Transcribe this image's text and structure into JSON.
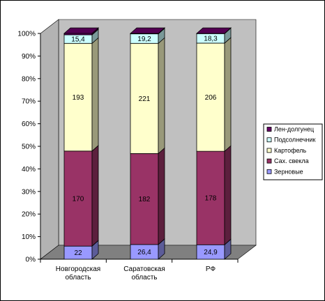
{
  "chart_data": {
    "type": "bar",
    "stacked": true,
    "percent": true,
    "categories": [
      [
        "Новгородская",
        "область"
      ],
      [
        "Саратовская",
        "область"
      ],
      [
        "РФ"
      ]
    ],
    "series": [
      {
        "name": "Зерновые",
        "color": "#9999ff",
        "labels": [
          "22",
          "26,4",
          "24,9"
        ],
        "percent": [
          5.8,
          6.5,
          6.4
        ]
      },
      {
        "name": "Сах. свекла",
        "color": "#993366",
        "labels": [
          "170",
          "182",
          "178"
        ],
        "percent": [
          42.1,
          40.3,
          41.4
        ]
      },
      {
        "name": "Картофель",
        "color": "#ffffcc",
        "labels": [
          "193",
          "221",
          "206"
        ],
        "percent": [
          47.7,
          48.8,
          47.9
        ]
      },
      {
        "name": "Подсолнечник",
        "color": "#ccffff",
        "labels": [
          "15,4",
          "19,2",
          "18,3"
        ],
        "percent": [
          3.8,
          4.2,
          4.2
        ]
      },
      {
        "name": "Лен-долгунец",
        "color": "#660066",
        "labels": [
          "",
          "",
          ""
        ],
        "percent": [
          0.6,
          0.2,
          0.1
        ]
      }
    ],
    "ytick_labels": [
      "0%",
      "10%",
      "20%",
      "30%",
      "40%",
      "50%",
      "60%",
      "70%",
      "80%",
      "90%",
      "100%"
    ],
    "ylim": [
      0,
      100
    ],
    "legend_position": "right",
    "grid": false,
    "wall_color": "#c0c0c0",
    "floor_color": "#808080"
  }
}
